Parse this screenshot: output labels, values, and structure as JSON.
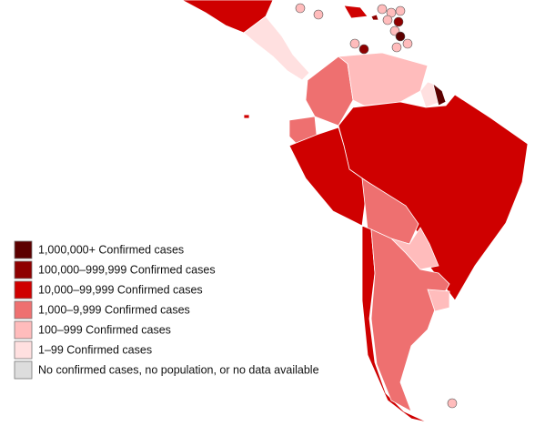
{
  "legend": {
    "items": [
      {
        "label": "1,000,000+ Confirmed cases",
        "color": "#5c0000"
      },
      {
        "label": "100,000–999,999 Confirmed cases",
        "color": "#8e0000"
      },
      {
        "label": "10,000–99,999 Confirmed cases",
        "color": "#cf0000"
      },
      {
        "label": "1,000–9,999 Confirmed cases",
        "color": "#ee7070"
      },
      {
        "label": "100–999 Confirmed cases",
        "color": "#ffbcbc"
      },
      {
        "label": "1–99 Confirmed cases",
        "color": "#ffe0e0"
      },
      {
        "label": "No confirmed cases, no population, or no data available",
        "color": "#dddddd"
      }
    ]
  }
}
